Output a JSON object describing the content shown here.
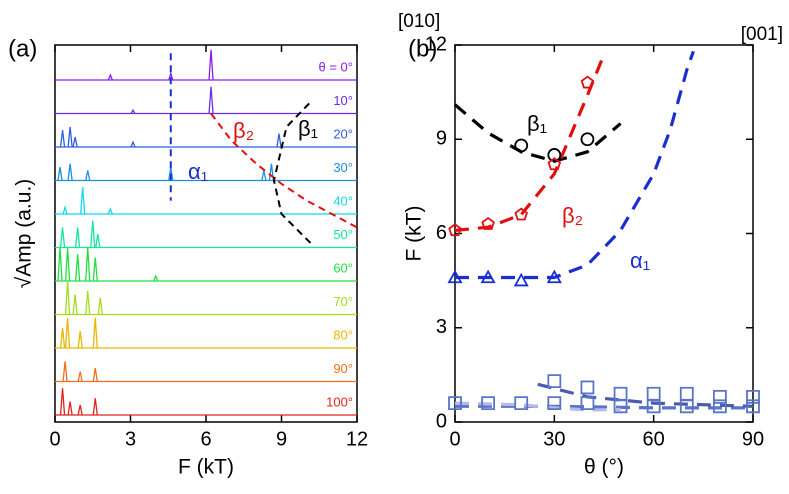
{
  "chart_data": [
    {
      "type": "spectra",
      "title": "(a)",
      "xlabel": "F (kT)",
      "ylabel": "√Amp (a.u.)",
      "xlim": [
        0,
        12
      ],
      "xticks": [
        0,
        3,
        6,
        9,
        12
      ],
      "series": [
        {
          "name": "θ = 0°",
          "color": "#8a1cf0",
          "x": [
            2.2,
            4.6,
            6.2
          ],
          "values": [
            0.15,
            0.2,
            0.9
          ]
        },
        {
          "name": "10°",
          "color": "#6a2ee6",
          "x": [
            3.1,
            6.2
          ],
          "values": [
            0.1,
            0.8
          ]
        },
        {
          "name": "20°",
          "color": "#2f5fe2",
          "x": [
            0.3,
            0.6,
            0.8,
            3.1,
            8.9
          ],
          "values": [
            0.5,
            0.6,
            0.3,
            0.15,
            0.4
          ]
        },
        {
          "name": "30°",
          "color": "#1f8ee0",
          "x": [
            0.2,
            0.6,
            1.3,
            4.6,
            8.3,
            8.6
          ],
          "values": [
            0.4,
            0.5,
            0.3,
            0.4,
            0.3,
            0.5
          ]
        },
        {
          "name": "40°",
          "color": "#12d8ea",
          "x": [
            0.4,
            1.1,
            2.2
          ],
          "values": [
            0.2,
            0.8,
            0.15
          ]
        },
        {
          "name": "50°",
          "color": "#14e6a2",
          "x": [
            0.3,
            0.9,
            1.5,
            1.7
          ],
          "values": [
            0.6,
            0.6,
            0.8,
            0.4
          ]
        },
        {
          "name": "60°",
          "color": "#22e040",
          "x": [
            0.2,
            0.5,
            0.9,
            1.3,
            1.6,
            4.0
          ],
          "values": [
            1.0,
            1.0,
            0.8,
            1.0,
            0.7,
            0.15
          ]
        },
        {
          "name": "70°",
          "color": "#a6dc1e",
          "x": [
            0.5,
            0.8,
            1.3,
            1.8
          ],
          "values": [
            1.0,
            0.6,
            0.7,
            0.5
          ]
        },
        {
          "name": "80°",
          "color": "#eab800",
          "x": [
            0.3,
            0.5,
            1.0,
            1.6
          ],
          "values": [
            0.6,
            0.9,
            0.5,
            0.9
          ]
        },
        {
          "name": "90°",
          "color": "#f2701c",
          "x": [
            0.4,
            1.0,
            1.6
          ],
          "values": [
            0.6,
            0.3,
            0.4
          ]
        },
        {
          "name": "100°",
          "color": "#e0241c",
          "x": [
            0.3,
            0.6,
            1.0,
            1.6
          ],
          "values": [
            0.8,
            0.4,
            0.3,
            0.5
          ]
        }
      ],
      "guides": [
        {
          "color": "#1a2fd0",
          "x": [
            4.6,
            4.6
          ],
          "values": [
            -8,
            36
          ]
        },
        {
          "color": "#e01010",
          "x": [
            6.2,
            7,
            8,
            9,
            10,
            11,
            12
          ],
          "values": [
            10,
            18,
            25,
            31,
            36,
            40,
            44
          ]
        },
        {
          "color": "#000000",
          "x": [
            10.1,
            9.2,
            8.7,
            9.0,
            10.2
          ],
          "values": [
            7,
            14,
            30,
            40,
            49
          ]
        }
      ],
      "annotations": [
        {
          "text": "β₂",
          "color": "#e01010"
        },
        {
          "text": "β₁",
          "color": "#000000"
        },
        {
          "text": "α₁",
          "color": "#1a2fd0"
        }
      ]
    },
    {
      "type": "scatter",
      "title": "(b)",
      "xlabel": "θ (°)",
      "ylabel": "F (kT)",
      "xlim": [
        0,
        90
      ],
      "ylim": [
        0,
        12
      ],
      "xticks": [
        0,
        30,
        60,
        90
      ],
      "yticks": [
        0,
        3,
        6,
        9,
        12
      ],
      "top_labels": [
        "[010]",
        "[001]"
      ],
      "series": [
        {
          "marker": "circle",
          "color": "#000000",
          "x": [
            20,
            30,
            40
          ],
          "values": [
            8.8,
            8.5,
            9.0
          ]
        },
        {
          "marker": "pentagon",
          "color": "#e01010",
          "x": [
            0,
            10,
            20,
            30,
            40
          ],
          "values": [
            6.1,
            6.3,
            6.6,
            8.2,
            10.8
          ]
        },
        {
          "marker": "triangle",
          "color": "#1a2fd0",
          "x": [
            0,
            10,
            20,
            30
          ],
          "values": [
            4.6,
            4.6,
            4.5,
            4.6
          ]
        },
        {
          "marker": "square",
          "color": "#5a74c8",
          "x": [
            0,
            10,
            20,
            30,
            40,
            50,
            60,
            70,
            80,
            90
          ],
          "values": [
            0.6,
            0.6,
            0.6,
            0.6,
            0.6,
            0.5,
            0.5,
            0.5,
            0.5,
            0.5
          ]
        },
        {
          "marker": "square",
          "color": "#5a74c8",
          "x": [
            30,
            40,
            50,
            60,
            70,
            80,
            90
          ],
          "values": [
            1.3,
            1.1,
            0.9,
            0.9,
            0.9,
            0.8,
            0.8
          ]
        }
      ],
      "fits": [
        {
          "color": "#000000",
          "x": [
            0,
            10,
            20,
            30,
            40,
            50
          ],
          "values": [
            10.1,
            9.2,
            8.6,
            8.3,
            8.6,
            9.5
          ]
        },
        {
          "color": "#e01010",
          "x": [
            0,
            10,
            20,
            30,
            40,
            45
          ],
          "values": [
            6.1,
            6.2,
            6.6,
            7.9,
            10.4,
            11.7
          ]
        },
        {
          "color": "#1a2fd0",
          "x": [
            0,
            30,
            40,
            50,
            60,
            65,
            70,
            72
          ],
          "values": [
            4.6,
            4.6,
            5.0,
            6.1,
            7.9,
            9.3,
            11.2,
            11.8
          ]
        },
        {
          "color": "#5a74c8",
          "x": [
            0,
            30,
            60,
            90
          ],
          "values": [
            0.5,
            0.5,
            0.45,
            0.45
          ]
        },
        {
          "color": "#b8b8ec",
          "x": [
            0,
            20,
            30,
            40,
            50
          ],
          "values": [
            0.6,
            0.55,
            0.45,
            0.38,
            0.4
          ]
        },
        {
          "color": "#4a5ab0",
          "x": [
            25,
            40,
            60,
            90
          ],
          "values": [
            1.2,
            0.8,
            0.6,
            0.5
          ]
        }
      ],
      "annotations": [
        {
          "text": "β₁",
          "color": "#000000"
        },
        {
          "text": "β₂",
          "color": "#e01010"
        },
        {
          "text": "α₁",
          "color": "#1a2fd0"
        }
      ]
    }
  ]
}
